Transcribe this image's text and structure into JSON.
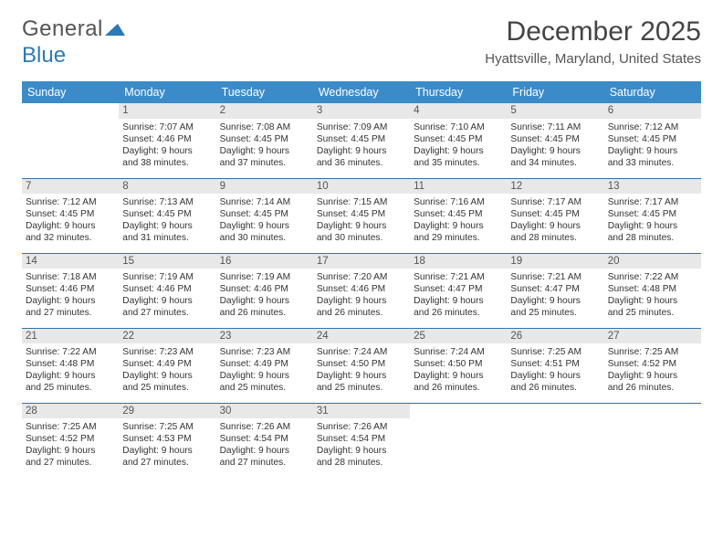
{
  "logo": {
    "word1": "General",
    "word2": "Blue"
  },
  "title": "December 2025",
  "subtitle": "Hyattsville, Maryland, United States",
  "colors": {
    "header_bg": "#3b8bc9",
    "header_text": "#ffffff",
    "row_border": "#2f73a8",
    "daynum_bg": "#e8e8e8",
    "text": "#333333",
    "logo_blue": "#2a7ab8"
  },
  "weekdays": [
    "Sunday",
    "Monday",
    "Tuesday",
    "Wednesday",
    "Thursday",
    "Friday",
    "Saturday"
  ],
  "weeks": [
    [
      {
        "n": ""
      },
      {
        "n": "1",
        "sr": "Sunrise: 7:07 AM",
        "ss": "Sunset: 4:46 PM",
        "d1": "Daylight: 9 hours",
        "d2": "and 38 minutes."
      },
      {
        "n": "2",
        "sr": "Sunrise: 7:08 AM",
        "ss": "Sunset: 4:45 PM",
        "d1": "Daylight: 9 hours",
        "d2": "and 37 minutes."
      },
      {
        "n": "3",
        "sr": "Sunrise: 7:09 AM",
        "ss": "Sunset: 4:45 PM",
        "d1": "Daylight: 9 hours",
        "d2": "and 36 minutes."
      },
      {
        "n": "4",
        "sr": "Sunrise: 7:10 AM",
        "ss": "Sunset: 4:45 PM",
        "d1": "Daylight: 9 hours",
        "d2": "and 35 minutes."
      },
      {
        "n": "5",
        "sr": "Sunrise: 7:11 AM",
        "ss": "Sunset: 4:45 PM",
        "d1": "Daylight: 9 hours",
        "d2": "and 34 minutes."
      },
      {
        "n": "6",
        "sr": "Sunrise: 7:12 AM",
        "ss": "Sunset: 4:45 PM",
        "d1": "Daylight: 9 hours",
        "d2": "and 33 minutes."
      }
    ],
    [
      {
        "n": "7",
        "sr": "Sunrise: 7:12 AM",
        "ss": "Sunset: 4:45 PM",
        "d1": "Daylight: 9 hours",
        "d2": "and 32 minutes."
      },
      {
        "n": "8",
        "sr": "Sunrise: 7:13 AM",
        "ss": "Sunset: 4:45 PM",
        "d1": "Daylight: 9 hours",
        "d2": "and 31 minutes."
      },
      {
        "n": "9",
        "sr": "Sunrise: 7:14 AM",
        "ss": "Sunset: 4:45 PM",
        "d1": "Daylight: 9 hours",
        "d2": "and 30 minutes."
      },
      {
        "n": "10",
        "sr": "Sunrise: 7:15 AM",
        "ss": "Sunset: 4:45 PM",
        "d1": "Daylight: 9 hours",
        "d2": "and 30 minutes."
      },
      {
        "n": "11",
        "sr": "Sunrise: 7:16 AM",
        "ss": "Sunset: 4:45 PM",
        "d1": "Daylight: 9 hours",
        "d2": "and 29 minutes."
      },
      {
        "n": "12",
        "sr": "Sunrise: 7:17 AM",
        "ss": "Sunset: 4:45 PM",
        "d1": "Daylight: 9 hours",
        "d2": "and 28 minutes."
      },
      {
        "n": "13",
        "sr": "Sunrise: 7:17 AM",
        "ss": "Sunset: 4:45 PM",
        "d1": "Daylight: 9 hours",
        "d2": "and 28 minutes."
      }
    ],
    [
      {
        "n": "14",
        "sr": "Sunrise: 7:18 AM",
        "ss": "Sunset: 4:46 PM",
        "d1": "Daylight: 9 hours",
        "d2": "and 27 minutes."
      },
      {
        "n": "15",
        "sr": "Sunrise: 7:19 AM",
        "ss": "Sunset: 4:46 PM",
        "d1": "Daylight: 9 hours",
        "d2": "and 27 minutes."
      },
      {
        "n": "16",
        "sr": "Sunrise: 7:19 AM",
        "ss": "Sunset: 4:46 PM",
        "d1": "Daylight: 9 hours",
        "d2": "and 26 minutes."
      },
      {
        "n": "17",
        "sr": "Sunrise: 7:20 AM",
        "ss": "Sunset: 4:46 PM",
        "d1": "Daylight: 9 hours",
        "d2": "and 26 minutes."
      },
      {
        "n": "18",
        "sr": "Sunrise: 7:21 AM",
        "ss": "Sunset: 4:47 PM",
        "d1": "Daylight: 9 hours",
        "d2": "and 26 minutes."
      },
      {
        "n": "19",
        "sr": "Sunrise: 7:21 AM",
        "ss": "Sunset: 4:47 PM",
        "d1": "Daylight: 9 hours",
        "d2": "and 25 minutes."
      },
      {
        "n": "20",
        "sr": "Sunrise: 7:22 AM",
        "ss": "Sunset: 4:48 PM",
        "d1": "Daylight: 9 hours",
        "d2": "and 25 minutes."
      }
    ],
    [
      {
        "n": "21",
        "sr": "Sunrise: 7:22 AM",
        "ss": "Sunset: 4:48 PM",
        "d1": "Daylight: 9 hours",
        "d2": "and 25 minutes."
      },
      {
        "n": "22",
        "sr": "Sunrise: 7:23 AM",
        "ss": "Sunset: 4:49 PM",
        "d1": "Daylight: 9 hours",
        "d2": "and 25 minutes."
      },
      {
        "n": "23",
        "sr": "Sunrise: 7:23 AM",
        "ss": "Sunset: 4:49 PM",
        "d1": "Daylight: 9 hours",
        "d2": "and 25 minutes."
      },
      {
        "n": "24",
        "sr": "Sunrise: 7:24 AM",
        "ss": "Sunset: 4:50 PM",
        "d1": "Daylight: 9 hours",
        "d2": "and 25 minutes."
      },
      {
        "n": "25",
        "sr": "Sunrise: 7:24 AM",
        "ss": "Sunset: 4:50 PM",
        "d1": "Daylight: 9 hours",
        "d2": "and 26 minutes."
      },
      {
        "n": "26",
        "sr": "Sunrise: 7:25 AM",
        "ss": "Sunset: 4:51 PM",
        "d1": "Daylight: 9 hours",
        "d2": "and 26 minutes."
      },
      {
        "n": "27",
        "sr": "Sunrise: 7:25 AM",
        "ss": "Sunset: 4:52 PM",
        "d1": "Daylight: 9 hours",
        "d2": "and 26 minutes."
      }
    ],
    [
      {
        "n": "28",
        "sr": "Sunrise: 7:25 AM",
        "ss": "Sunset: 4:52 PM",
        "d1": "Daylight: 9 hours",
        "d2": "and 27 minutes."
      },
      {
        "n": "29",
        "sr": "Sunrise: 7:25 AM",
        "ss": "Sunset: 4:53 PM",
        "d1": "Daylight: 9 hours",
        "d2": "and 27 minutes."
      },
      {
        "n": "30",
        "sr": "Sunrise: 7:26 AM",
        "ss": "Sunset: 4:54 PM",
        "d1": "Daylight: 9 hours",
        "d2": "and 27 minutes."
      },
      {
        "n": "31",
        "sr": "Sunrise: 7:26 AM",
        "ss": "Sunset: 4:54 PM",
        "d1": "Daylight: 9 hours",
        "d2": "and 28 minutes."
      },
      {
        "n": ""
      },
      {
        "n": ""
      },
      {
        "n": ""
      }
    ]
  ]
}
